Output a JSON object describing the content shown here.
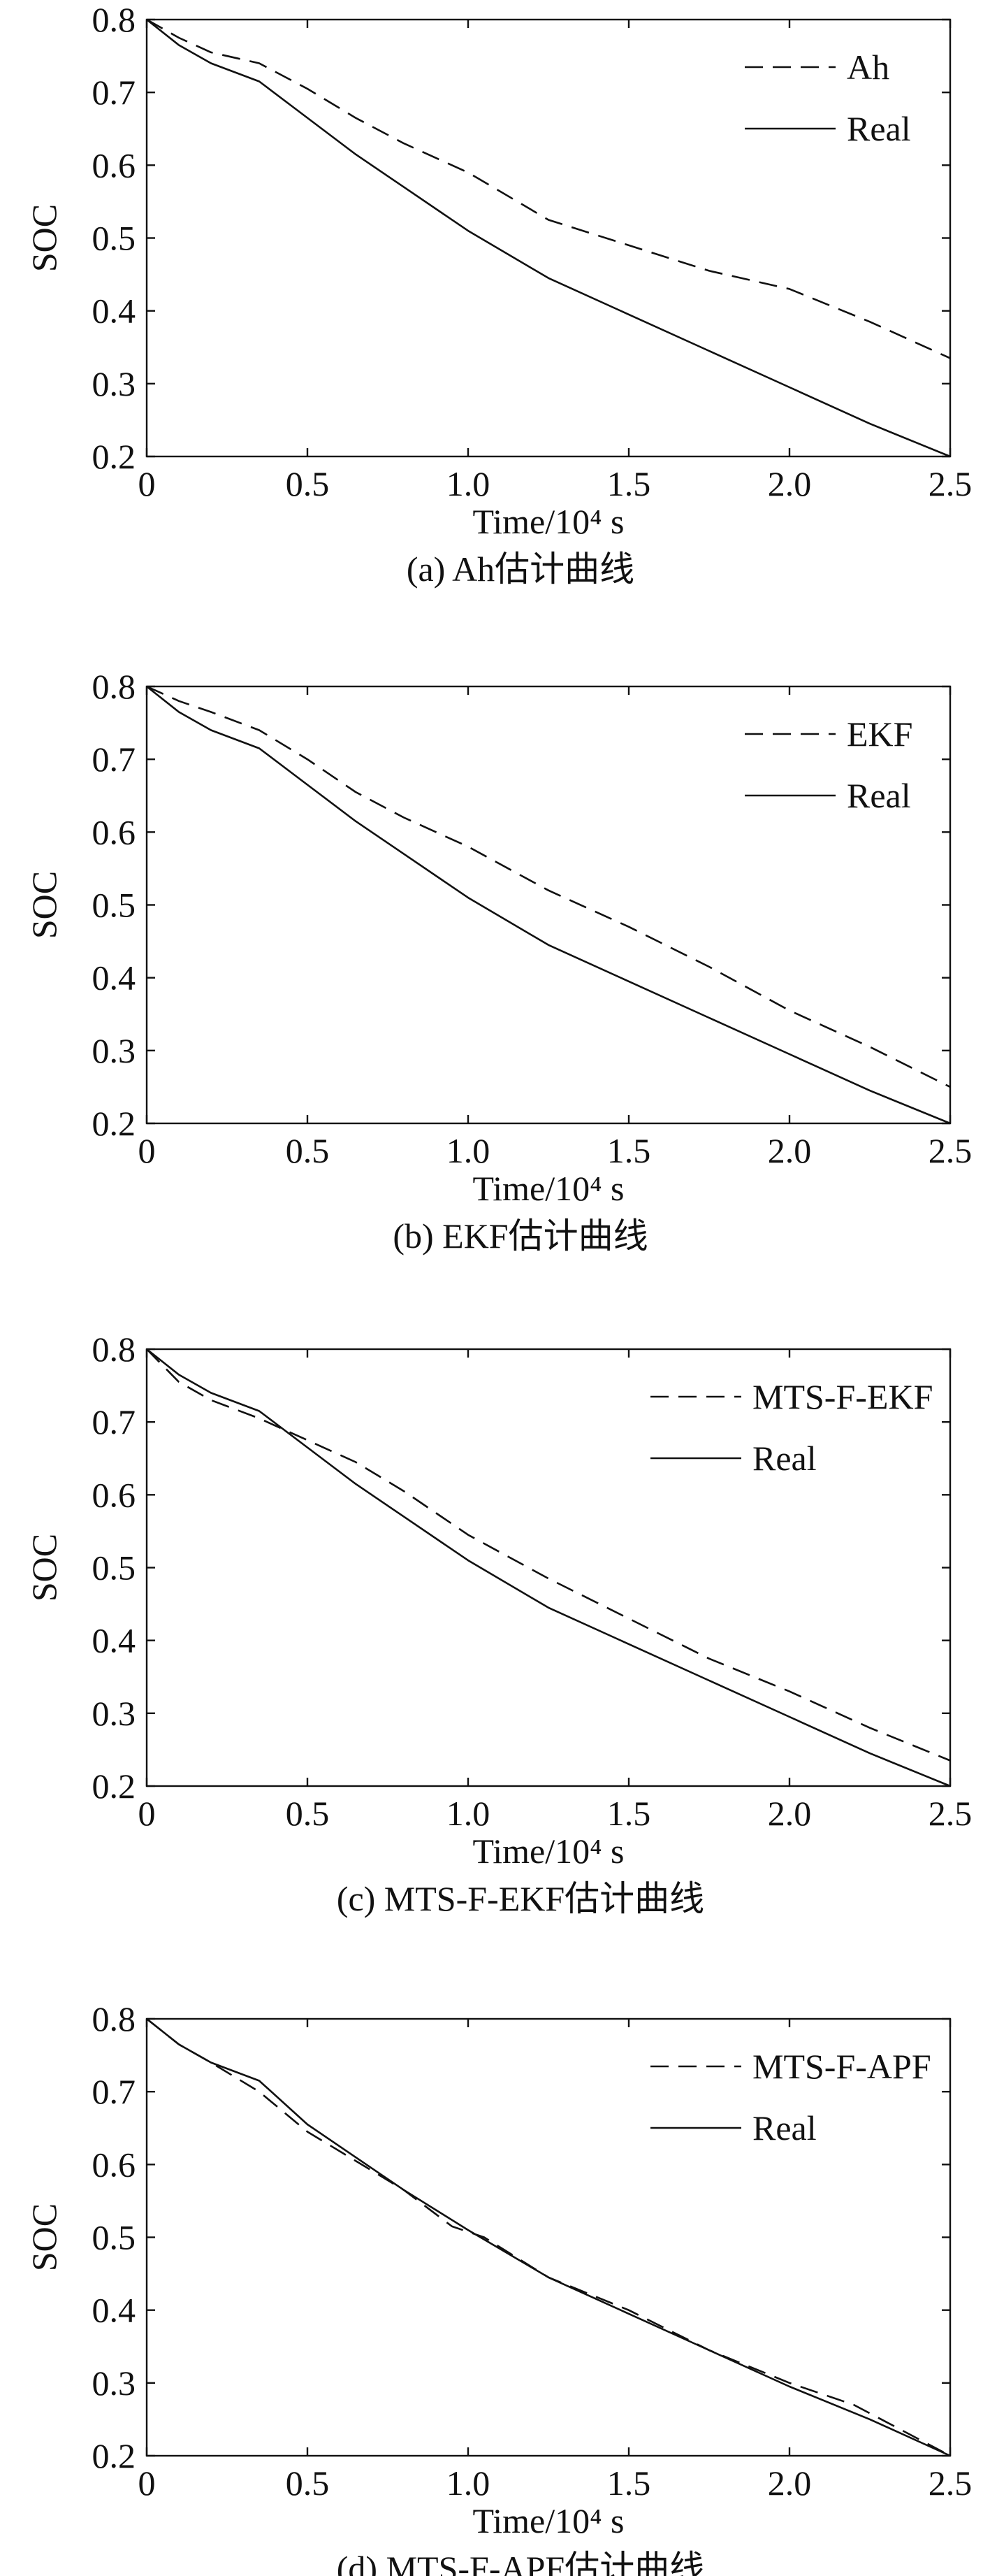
{
  "chart_data": [
    {
      "type": "line",
      "caption": "(a) Ah估计曲线",
      "xlabel": "Time/10⁴ s",
      "ylabel": "SOC",
      "xlim": [
        0,
        2.5
      ],
      "ylim": [
        0.2,
        0.8
      ],
      "xticks": [
        "0",
        "0.5",
        "1.0",
        "1.5",
        "2.0",
        "2.5"
      ],
      "yticks": [
        "0.2",
        "0.3",
        "0.4",
        "0.5",
        "0.6",
        "0.7",
        "0.8"
      ],
      "grid": false,
      "legend_position": "top-right",
      "series": [
        {
          "name": "Ah",
          "style": "dashed",
          "x": [
            0,
            0.1,
            0.2,
            0.35,
            0.5,
            0.65,
            0.8,
            1.0,
            1.25,
            1.5,
            1.75,
            2.0,
            2.25,
            2.5
          ],
          "y": [
            0.8,
            0.775,
            0.755,
            0.74,
            0.705,
            0.665,
            0.63,
            0.59,
            0.525,
            0.49,
            0.455,
            0.43,
            0.385,
            0.335
          ]
        },
        {
          "name": "Real",
          "style": "solid",
          "x": [
            0,
            0.1,
            0.2,
            0.35,
            0.5,
            0.65,
            0.8,
            1.0,
            1.25,
            1.5,
            1.75,
            2.0,
            2.25,
            2.5
          ],
          "y": [
            0.8,
            0.765,
            0.74,
            0.715,
            0.665,
            0.615,
            0.57,
            0.51,
            0.445,
            0.395,
            0.345,
            0.295,
            0.245,
            0.2
          ]
        }
      ]
    },
    {
      "type": "line",
      "caption": "(b) EKF估计曲线",
      "xlabel": "Time/10⁴ s",
      "ylabel": "SOC",
      "xlim": [
        0,
        2.5
      ],
      "ylim": [
        0.2,
        0.8
      ],
      "xticks": [
        "0",
        "0.5",
        "1.0",
        "1.5",
        "2.0",
        "2.5"
      ],
      "yticks": [
        "0.2",
        "0.3",
        "0.4",
        "0.5",
        "0.6",
        "0.7",
        "0.8"
      ],
      "grid": false,
      "legend_position": "top-right",
      "series": [
        {
          "name": "EKF",
          "style": "dashed",
          "x": [
            0,
            0.1,
            0.2,
            0.35,
            0.5,
            0.65,
            0.8,
            1.0,
            1.25,
            1.5,
            1.75,
            2.0,
            2.25,
            2.5
          ],
          "y": [
            0.8,
            0.78,
            0.765,
            0.74,
            0.7,
            0.655,
            0.62,
            0.58,
            0.52,
            0.47,
            0.415,
            0.355,
            0.305,
            0.25
          ]
        },
        {
          "name": "Real",
          "style": "solid",
          "x": [
            0,
            0.1,
            0.2,
            0.35,
            0.5,
            0.65,
            0.8,
            1.0,
            1.25,
            1.5,
            1.75,
            2.0,
            2.25,
            2.5
          ],
          "y": [
            0.8,
            0.765,
            0.74,
            0.715,
            0.665,
            0.615,
            0.57,
            0.51,
            0.445,
            0.395,
            0.345,
            0.295,
            0.245,
            0.2
          ]
        }
      ]
    },
    {
      "type": "line",
      "caption": "(c) MTS-F-EKF估计曲线",
      "xlabel": "Time/10⁴ s",
      "ylabel": "SOC",
      "xlim": [
        0,
        2.5
      ],
      "ylim": [
        0.2,
        0.8
      ],
      "xticks": [
        "0",
        "0.5",
        "1.0",
        "1.5",
        "2.0",
        "2.5"
      ],
      "yticks": [
        "0.2",
        "0.3",
        "0.4",
        "0.5",
        "0.6",
        "0.7",
        "0.8"
      ],
      "grid": false,
      "legend_position": "top-right",
      "series": [
        {
          "name": "MTS-F-EKF",
          "style": "dashed",
          "x": [
            0,
            0.1,
            0.2,
            0.35,
            0.5,
            0.65,
            0.8,
            1.0,
            1.25,
            1.5,
            1.75,
            2.0,
            2.25,
            2.5
          ],
          "y": [
            0.8,
            0.755,
            0.73,
            0.705,
            0.675,
            0.645,
            0.605,
            0.545,
            0.485,
            0.43,
            0.375,
            0.33,
            0.28,
            0.235
          ]
        },
        {
          "name": "Real",
          "style": "solid",
          "x": [
            0,
            0.1,
            0.2,
            0.35,
            0.5,
            0.65,
            0.8,
            1.0,
            1.25,
            1.5,
            1.75,
            2.0,
            2.25,
            2.5
          ],
          "y": [
            0.8,
            0.765,
            0.74,
            0.715,
            0.665,
            0.615,
            0.57,
            0.51,
            0.445,
            0.395,
            0.345,
            0.295,
            0.245,
            0.2
          ]
        }
      ]
    },
    {
      "type": "line",
      "caption": "(d) MTS-F-APF估计曲线",
      "xlabel": "Time/10⁴ s",
      "ylabel": "SOC",
      "xlim": [
        0,
        2.5
      ],
      "ylim": [
        0.2,
        0.8
      ],
      "xticks": [
        "0",
        "0.5",
        "1.0",
        "1.5",
        "2.0",
        "2.5"
      ],
      "yticks": [
        "0.2",
        "0.3",
        "0.4",
        "0.5",
        "0.6",
        "0.7",
        "0.8"
      ],
      "grid": false,
      "legend_position": "top-right",
      "series": [
        {
          "name": "MTS-F-APF",
          "style": "dashed",
          "x": [
            0,
            0.1,
            0.2,
            0.35,
            0.5,
            0.65,
            0.8,
            0.95,
            1.05,
            1.25,
            1.5,
            1.75,
            2.0,
            2.2,
            2.5
          ],
          "y": [
            0.8,
            0.765,
            0.74,
            0.7,
            0.645,
            0.605,
            0.565,
            0.515,
            0.5,
            0.445,
            0.4,
            0.345,
            0.3,
            0.27,
            0.2
          ]
        },
        {
          "name": "Real",
          "style": "solid",
          "x": [
            0,
            0.1,
            0.2,
            0.35,
            0.5,
            0.65,
            0.8,
            1.0,
            1.25,
            1.5,
            1.75,
            2.0,
            2.25,
            2.5
          ],
          "y": [
            0.8,
            0.765,
            0.74,
            0.715,
            0.655,
            0.61,
            0.565,
            0.51,
            0.445,
            0.395,
            0.345,
            0.295,
            0.25,
            0.2
          ]
        }
      ]
    }
  ]
}
